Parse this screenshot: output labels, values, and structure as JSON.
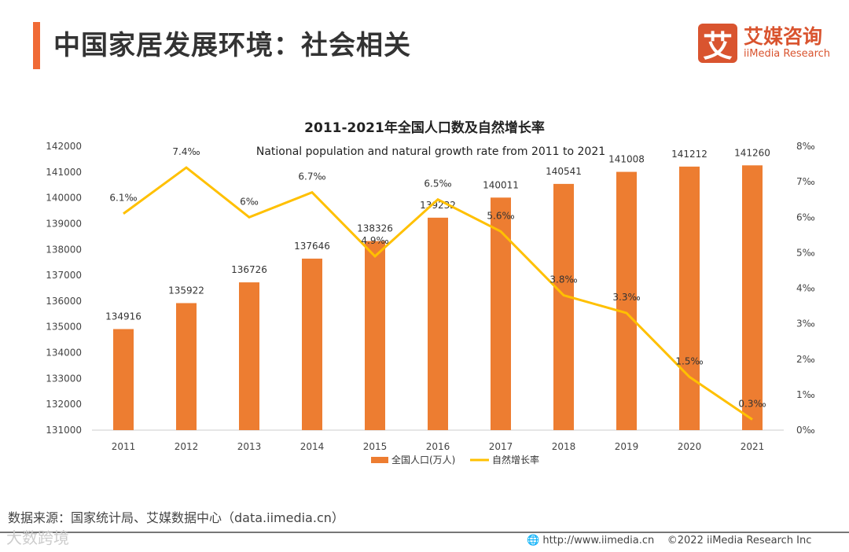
{
  "header": {
    "title": "中国家居发展环境：社会相关",
    "logo_mark": "艾",
    "logo_cn": "艾媒咨询",
    "logo_en": "iiMedia Research"
  },
  "footer": {
    "source": "数据来源：国家统计局、艾媒数据中心（data.iimedia.cn）",
    "watermark": "大数跨境",
    "url": "http://www.iimedia.cn",
    "copyright": "©2022  iiMedia Research  Inc"
  },
  "chart_data": {
    "type": "bar+line",
    "title": "2011-2021年全国人口数及自然增长率",
    "subtitle": "National population and natural growth rate from 2011 to 2021",
    "categories": [
      "2011",
      "2012",
      "2013",
      "2014",
      "2015",
      "2016",
      "2017",
      "2018",
      "2019",
      "2020",
      "2021"
    ],
    "series": [
      {
        "name": "全国人口(万人)",
        "type": "bar",
        "axis": "left",
        "color": "#ED7D31",
        "values": [
          134916,
          135922,
          136726,
          137646,
          138326,
          139232,
          140011,
          140541,
          141008,
          141212,
          141260
        ]
      },
      {
        "name": "自然增长率",
        "type": "line",
        "axis": "right",
        "color": "#FFC000",
        "values": [
          6.1,
          7.4,
          6,
          6.7,
          4.9,
          6.5,
          5.6,
          3.8,
          3.3,
          1.5,
          0.3
        ],
        "labels": [
          "6.1‰",
          "7.4‰",
          "6‰",
          "6.7‰",
          "4.9‰",
          "6.5‰",
          "5.6‰",
          "3.8‰",
          "3.3‰",
          "1.5‰",
          "0.3‰"
        ]
      }
    ],
    "ylim_left": [
      131000,
      142000
    ],
    "left_ticks": [
      "131000",
      "132000",
      "133000",
      "134000",
      "135000",
      "136000",
      "137000",
      "138000",
      "139000",
      "140000",
      "141000",
      "142000"
    ],
    "ylim_right": [
      0,
      8
    ],
    "right_ticks": [
      "0‰",
      "1‰",
      "2‰",
      "3‰",
      "4‰",
      "5‰",
      "6‰",
      "7‰",
      "8‰"
    ],
    "legend_position": "bottom"
  }
}
